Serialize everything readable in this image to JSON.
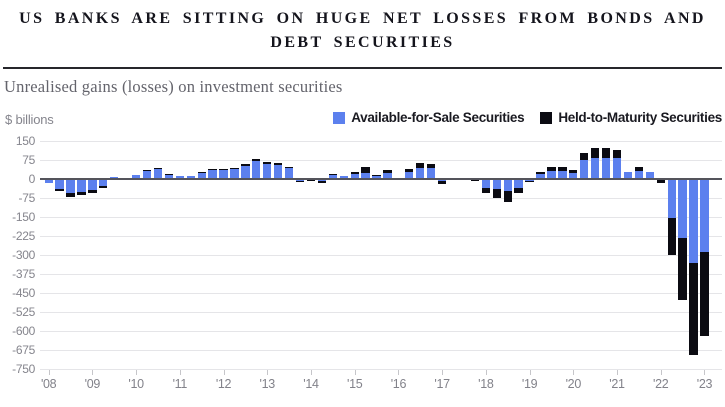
{
  "title_line1": "US BANKS ARE SITTING ON HUGE NET LOSSES FROM BONDS AND",
  "title_line2": "DEBT SECURITIES",
  "subtitle": "Unrealised gains (losses) on investment securities",
  "unit_label": "$ billions",
  "legend": [
    {
      "label": "Available-for-Sale Securities",
      "color": "#5c80ee"
    },
    {
      "label": "Held-to-Maturity Securities",
      "color": "#0b0b12"
    }
  ],
  "colors": {
    "afs_blue": "#5c80ee",
    "htm_black": "#0b0b12",
    "title_text": "#14141c",
    "subtitle_text": "#64646c",
    "axis_text": "#85858d",
    "gridline": "#e5e5e8",
    "zero_line": "#54545b"
  },
  "chart_data": {
    "type": "bar",
    "stacked": true,
    "title": "US BANKS ARE SITTING ON HUGE NET LOSSES FROM BONDS AND DEBT SECURITIES",
    "subtitle": "Unrealised gains (losses) on investment securities",
    "ylabel": "$ billions",
    "xlabel": "",
    "ylim": [
      -750,
      150
    ],
    "grid": true,
    "legend_position": "top-right",
    "y_ticks": [
      150,
      75,
      0,
      -75,
      -150,
      -225,
      -300,
      -375,
      -450,
      -525,
      -600,
      -675,
      -750
    ],
    "x_tick_labels": [
      "'08",
      "'09",
      "'10",
      "'11",
      "'12",
      "'13",
      "'14",
      "'15",
      "'16",
      "'17",
      "'18",
      "'19",
      "'20",
      "'21",
      "'22",
      "'23"
    ],
    "quarters": [
      "2008 Q1",
      "2008 Q2",
      "2008 Q3",
      "2008 Q4",
      "2009 Q1",
      "2009 Q2",
      "2009 Q3",
      "2009 Q4",
      "2010 Q1",
      "2010 Q2",
      "2010 Q3",
      "2010 Q4",
      "2011 Q1",
      "2011 Q2",
      "2011 Q3",
      "2011 Q4",
      "2012 Q1",
      "2012 Q2",
      "2012 Q3",
      "2012 Q4",
      "2013 Q1",
      "2013 Q2",
      "2013 Q3",
      "2013 Q4",
      "2014 Q1",
      "2014 Q2",
      "2014 Q3",
      "2014 Q4",
      "2015 Q1",
      "2015 Q2",
      "2015 Q3",
      "2015 Q4",
      "2016 Q1",
      "2016 Q2",
      "2016 Q3",
      "2016 Q4",
      "2017 Q1",
      "2017 Q2",
      "2017 Q3",
      "2017 Q4",
      "2018 Q1",
      "2018 Q2",
      "2018 Q3",
      "2018 Q4",
      "2019 Q1",
      "2019 Q2",
      "2019 Q3",
      "2019 Q4",
      "2020 Q1",
      "2020 Q2",
      "2020 Q3",
      "2020 Q4",
      "2021 Q1",
      "2021 Q2",
      "2021 Q3",
      "2021 Q4",
      "2022 Q1",
      "2022 Q2",
      "2022 Q3",
      "2022 Q4",
      "2023 Q1"
    ],
    "series": [
      {
        "name": "Available-for-Sale Securities",
        "color": "#5c80ee",
        "values": [
          -15,
          -38,
          -57,
          -50,
          -44,
          -28,
          8,
          4,
          16,
          33,
          39,
          17,
          13,
          12,
          27,
          35,
          36,
          43,
          53,
          70,
          61,
          56,
          43,
          -6,
          -4,
          -6,
          14,
          12,
          18,
          25,
          15,
          22,
          3,
          26,
          43,
          44,
          -9,
          -5,
          -3,
          -4,
          -37,
          -41,
          -47,
          -37,
          -8,
          18,
          32,
          32,
          23,
          75,
          84,
          82,
          84,
          26,
          33,
          26,
          -2,
          -155,
          -234,
          -330,
          -287
        ]
      },
      {
        "name": "Held-to-Maturity Securities",
        "color": "#0b0b12",
        "values": [
          0,
          -8,
          -13,
          -13,
          -12,
          -8,
          0,
          0,
          0,
          3,
          4,
          1,
          0,
          0,
          2,
          3,
          2,
          2,
          6,
          8,
          7,
          6,
          5,
          -2,
          -1,
          -9,
          4,
          0,
          11,
          24,
          1,
          14,
          0,
          13,
          20,
          14,
          -11,
          0,
          0,
          -2,
          -20,
          -35,
          -42,
          -17,
          -2,
          11,
          14,
          17,
          13,
          26,
          40,
          39,
          30,
          0,
          13,
          0,
          -15,
          -145,
          -243,
          -365,
          -333
        ]
      }
    ]
  }
}
